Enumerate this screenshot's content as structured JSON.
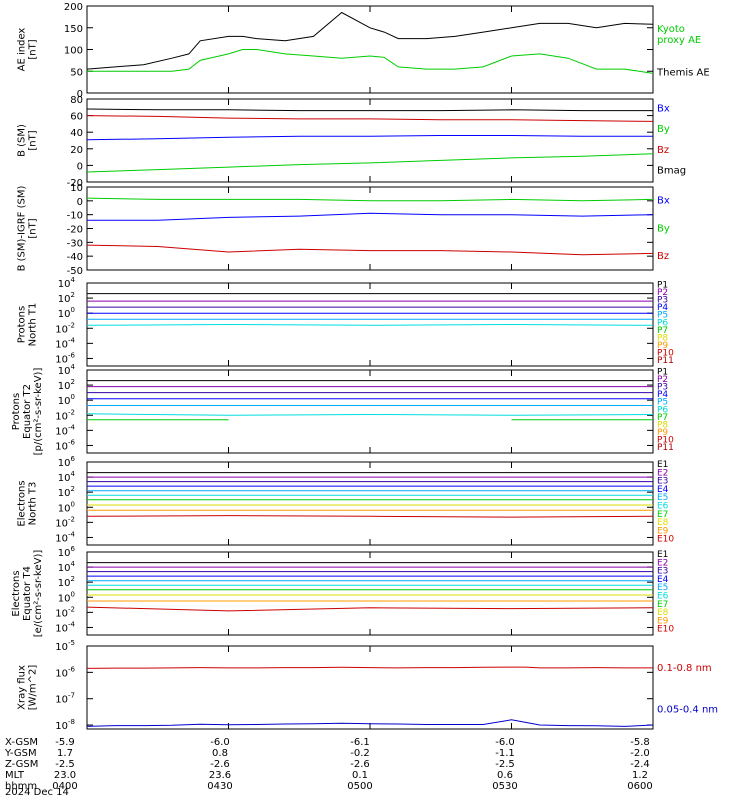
{
  "footer": {
    "rows": [
      {
        "label": "X-GSM",
        "values": [
          "-5.9",
          "-6.0",
          "-6.1",
          "-6.0",
          "-5.8"
        ]
      },
      {
        "label": "Y-GSM",
        "values": [
          "1.7",
          "0.8",
          "-0.2",
          "-1.1",
          "-2.0"
        ]
      },
      {
        "label": "Z-GSM",
        "values": [
          "-2.5",
          "-2.6",
          "-2.6",
          "-2.5",
          "-2.4"
        ]
      },
      {
        "label": "MLT",
        "values": [
          "23.0",
          "23.6",
          "0.1",
          "0.6",
          "1.2"
        ]
      },
      {
        "label": "hhmm",
        "values": [
          "0400",
          "0430",
          "0500",
          "0530",
          "0600"
        ]
      }
    ],
    "date": "2024 Dec 14"
  },
  "chart_data": [
    {
      "type": "line",
      "ylabel": "AE index\n[nT]",
      "scale": "linear",
      "ylim": [
        0,
        200
      ],
      "ticks": [
        {
          "v": 0,
          "l": "0"
        },
        {
          "v": 50,
          "l": "50"
        },
        {
          "v": 100,
          "l": "100"
        },
        {
          "v": 150,
          "l": "150"
        },
        {
          "v": 200,
          "l": "200"
        }
      ],
      "x": [
        0,
        0.1,
        0.2,
        0.3,
        0.36,
        0.4,
        0.5,
        0.55,
        0.6,
        0.7,
        0.8,
        0.9,
        1.0,
        1.05,
        1.1,
        1.2,
        1.3,
        1.4,
        1.5,
        1.6,
        1.7,
        1.8,
        1.9,
        2.0
      ],
      "series": [
        {
          "name": "Kyoto\nproxy AE",
          "color": "#00cc00",
          "values": [
            50,
            50,
            50,
            50,
            55,
            75,
            90,
            100,
            100,
            90,
            85,
            80,
            85,
            82,
            60,
            55,
            55,
            60,
            85,
            90,
            80,
            55,
            55,
            45
          ]
        },
        {
          "name": "Themis AE",
          "color": "#000000",
          "values": [
            55,
            60,
            65,
            80,
            90,
            120,
            130,
            130,
            125,
            120,
            130,
            185,
            150,
            140,
            125,
            125,
            130,
            140,
            150,
            160,
            160,
            150,
            160,
            158
          ]
        }
      ]
    },
    {
      "type": "line",
      "ylabel": "B (SM)\n[nT]",
      "scale": "linear",
      "ylim": [
        -20,
        80
      ],
      "ticks": [
        {
          "v": -20,
          "l": "-20"
        },
        {
          "v": 0,
          "l": "0"
        },
        {
          "v": 20,
          "l": "20"
        },
        {
          "v": 40,
          "l": "40"
        },
        {
          "v": 60,
          "l": "60"
        },
        {
          "v": 80,
          "l": "80"
        }
      ],
      "x": [
        0,
        0.25,
        0.5,
        0.75,
        1.0,
        1.25,
        1.5,
        1.75,
        2.0
      ],
      "series": [
        {
          "name": "Bx",
          "color": "#0000ff",
          "values": [
            31,
            32,
            34,
            35,
            35,
            36,
            36,
            35,
            35
          ]
        },
        {
          "name": "By",
          "color": "#00cc00",
          "values": [
            -8,
            -5,
            -2,
            1,
            3,
            6,
            9,
            11,
            14
          ]
        },
        {
          "name": "Bz",
          "color": "#cc0000",
          "values": [
            60,
            59,
            57,
            56,
            56,
            55,
            55,
            54,
            53
          ]
        },
        {
          "name": "Bmag",
          "color": "#000000",
          "values": [
            68,
            67,
            67,
            66,
            66,
            66,
            67,
            66,
            66
          ]
        }
      ]
    },
    {
      "type": "line",
      "ylabel": "B (SM)-IGRF (SM)\n[nT]",
      "scale": "linear",
      "ylim": [
        -50,
        10
      ],
      "ticks": [
        {
          "v": -50,
          "l": "-50"
        },
        {
          "v": -40,
          "l": "-40"
        },
        {
          "v": -30,
          "l": "-30"
        },
        {
          "v": -20,
          "l": "-20"
        },
        {
          "v": -10,
          "l": "-10"
        },
        {
          "v": 0,
          "l": "0"
        },
        {
          "v": 10,
          "l": "10"
        }
      ],
      "x": [
        0,
        0.25,
        0.5,
        0.75,
        1.0,
        1.25,
        1.5,
        1.75,
        2.0
      ],
      "series": [
        {
          "name": "Bx",
          "color": "#0000ff",
          "values": [
            -14,
            -14,
            -12,
            -11,
            -9,
            -10,
            -10,
            -11,
            -10
          ]
        },
        {
          "name": "By",
          "color": "#00cc00",
          "values": [
            2,
            1,
            1,
            1,
            0,
            0,
            1,
            0,
            1
          ]
        },
        {
          "name": "Bz",
          "color": "#cc0000",
          "values": [
            -32,
            -33,
            -37,
            -35,
            -36,
            -36,
            -37,
            -39,
            -38
          ]
        }
      ]
    },
    {
      "type": "line",
      "ylabel": "Protons\nNorth T1",
      "scale": "log",
      "ylim": [
        -7,
        4
      ],
      "ticks": [
        {
          "v": -6,
          "l": "10",
          "e": "-6"
        },
        {
          "v": -4,
          "l": "10",
          "e": "-4"
        },
        {
          "v": -2,
          "l": "10",
          "e": "-2"
        },
        {
          "v": 0,
          "l": "10",
          "e": "0"
        },
        {
          "v": 2,
          "l": "10",
          "e": "2"
        },
        {
          "v": 4,
          "l": "10",
          "e": "4"
        }
      ],
      "x": [
        0,
        0.5,
        1.0,
        1.5,
        2.0
      ],
      "series": [
        {
          "name": "P1",
          "color": "#000000",
          "values": [
            2.6,
            2.6,
            2.6,
            2.6,
            2.6
          ]
        },
        {
          "name": "P2",
          "color": "#8800aa",
          "values": [
            1.6,
            1.6,
            1.6,
            1.6,
            1.6
          ]
        },
        {
          "name": "P3",
          "color": "#3300aa",
          "values": [
            0.8,
            0.8,
            0.8,
            0.8,
            0.8
          ]
        },
        {
          "name": "P4",
          "color": "#0000ff",
          "values": [
            0,
            0,
            0,
            0,
            0
          ]
        },
        {
          "name": "P5",
          "color": "#00aaff",
          "values": [
            -0.8,
            -0.8,
            -0.8,
            -0.8,
            -0.8
          ]
        },
        {
          "name": "P6",
          "color": "#00dddd",
          "values": [
            -1.6,
            -1.5,
            -1.6,
            -1.5,
            -1.6
          ]
        },
        {
          "name": "P7",
          "color": "#00cc00",
          "values": [
            null,
            null,
            null,
            null,
            null
          ]
        },
        {
          "name": "P8",
          "color": "#dddd00",
          "values": [
            -3.0,
            null,
            -3.0,
            null,
            null
          ]
        },
        {
          "name": "P9",
          "color": "#ff9900",
          "values": [
            null,
            null,
            null,
            null,
            -3.3
          ]
        },
        {
          "name": "P10",
          "color": "#cc0000",
          "values": [
            null,
            null,
            null,
            null,
            null
          ]
        },
        {
          "name": "P11",
          "color": "#aa0000",
          "values": [
            null,
            null,
            null,
            null,
            null
          ]
        }
      ]
    },
    {
      "type": "line",
      "ylabel": "Protons\nEquator T2\n[p/(cm²-s-sr-keV)]",
      "scale": "log",
      "ylim": [
        -7,
        4
      ],
      "ticks": [
        {
          "v": -6,
          "l": "10",
          "e": "-6"
        },
        {
          "v": -4,
          "l": "10",
          "e": "-4"
        },
        {
          "v": -2,
          "l": "10",
          "e": "-2"
        },
        {
          "v": 0,
          "l": "10",
          "e": "0"
        },
        {
          "v": 2,
          "l": "10",
          "e": "2"
        },
        {
          "v": 4,
          "l": "10",
          "e": "4"
        }
      ],
      "x": [
        0,
        0.5,
        1.0,
        1.5,
        2.0
      ],
      "series": [
        {
          "name": "P1",
          "color": "#000000",
          "values": [
            2.6,
            2.6,
            2.6,
            2.6,
            2.6
          ]
        },
        {
          "name": "P2",
          "color": "#8800aa",
          "values": [
            1.8,
            1.8,
            1.8,
            1.8,
            1.8
          ]
        },
        {
          "name": "P3",
          "color": "#3300aa",
          "values": [
            1.0,
            1.0,
            1.0,
            1.0,
            1.0
          ]
        },
        {
          "name": "P4",
          "color": "#0000ff",
          "values": [
            0.2,
            0.2,
            0.2,
            0.2,
            0.2
          ]
        },
        {
          "name": "P5",
          "color": "#00aaff",
          "values": [
            -0.7,
            -0.7,
            -0.7,
            -0.7,
            -0.7
          ]
        },
        {
          "name": "P6",
          "color": "#00dddd",
          "values": [
            -1.8,
            -2.0,
            -1.9,
            -2.0,
            -1.9
          ]
        },
        {
          "name": "P7",
          "color": "#00cc00",
          "values": [
            -2.6,
            -2.6,
            null,
            -2.6,
            -2.6
          ]
        },
        {
          "name": "P8",
          "color": "#dddd00",
          "values": [
            null,
            null,
            null,
            null,
            null
          ]
        },
        {
          "name": "P9",
          "color": "#ff9900",
          "values": [
            null,
            null,
            null,
            null,
            null
          ]
        },
        {
          "name": "P10",
          "color": "#cc0000",
          "values": [
            null,
            null,
            null,
            null,
            null
          ]
        },
        {
          "name": "P11",
          "color": "#aa0000",
          "values": [
            null,
            null,
            null,
            null,
            null
          ]
        }
      ]
    },
    {
      "type": "line",
      "ylabel": "Electrons\nNorth T3",
      "scale": "log",
      "ylim": [
        -5,
        6
      ],
      "ticks": [
        {
          "v": -4,
          "l": "10",
          "e": "-4"
        },
        {
          "v": -2,
          "l": "10",
          "e": "-2"
        },
        {
          "v": 0,
          "l": "10",
          "e": "0"
        },
        {
          "v": 2,
          "l": "10",
          "e": "2"
        },
        {
          "v": 4,
          "l": "10",
          "e": "4"
        },
        {
          "v": 6,
          "l": "10",
          "e": "6"
        }
      ],
      "x": [
        0,
        0.5,
        1.0,
        1.5,
        2.0
      ],
      "series": [
        {
          "name": "E1",
          "color": "#000000",
          "values": [
            4.6,
            4.6,
            4.6,
            4.6,
            4.6
          ]
        },
        {
          "name": "E2",
          "color": "#8800aa",
          "values": [
            4.0,
            4.0,
            4.0,
            4.0,
            4.0
          ]
        },
        {
          "name": "E3",
          "color": "#3300aa",
          "values": [
            3.4,
            3.4,
            3.4,
            3.4,
            3.4
          ]
        },
        {
          "name": "E4",
          "color": "#0000ff",
          "values": [
            2.8,
            2.8,
            2.8,
            2.8,
            2.8
          ]
        },
        {
          "name": "E5",
          "color": "#00aaff",
          "values": [
            2.2,
            2.2,
            2.2,
            2.2,
            2.2
          ]
        },
        {
          "name": "E6",
          "color": "#00dddd",
          "values": [
            1.6,
            1.6,
            1.6,
            1.6,
            1.6
          ]
        },
        {
          "name": "E7",
          "color": "#00cc00",
          "values": [
            1.0,
            1.0,
            1.0,
            1.0,
            1.0
          ]
        },
        {
          "name": "E8",
          "color": "#dddd00",
          "values": [
            0.3,
            0.3,
            0.3,
            0.3,
            0.3
          ]
        },
        {
          "name": "E9",
          "color": "#ff9900",
          "values": [
            -0.4,
            -0.4,
            -0.4,
            -0.4,
            -0.4
          ]
        },
        {
          "name": "E10",
          "color": "#cc0000",
          "values": [
            -1.2,
            -1.1,
            -1.2,
            -1.3,
            -1.2
          ]
        }
      ]
    },
    {
      "type": "line",
      "ylabel": "Electrons\nEquator T4\n[e/(cm²-s-sr-keV)]",
      "scale": "log",
      "ylim": [
        -5,
        6
      ],
      "ticks": [
        {
          "v": -4,
          "l": "10",
          "e": "-4"
        },
        {
          "v": -2,
          "l": "10",
          "e": "-2"
        },
        {
          "v": 0,
          "l": "10",
          "e": "0"
        },
        {
          "v": 2,
          "l": "10",
          "e": "2"
        },
        {
          "v": 4,
          "l": "10",
          "e": "4"
        },
        {
          "v": 6,
          "l": "10",
          "e": "6"
        }
      ],
      "x": [
        0,
        0.5,
        1.0,
        1.5,
        2.0
      ],
      "series": [
        {
          "name": "E1",
          "color": "#000000",
          "values": [
            4.6,
            4.6,
            4.6,
            4.6,
            4.6
          ]
        },
        {
          "name": "E2",
          "color": "#8800aa",
          "values": [
            4.0,
            4.0,
            4.0,
            4.0,
            4.0
          ]
        },
        {
          "name": "E3",
          "color": "#3300aa",
          "values": [
            3.4,
            3.4,
            3.4,
            3.4,
            3.4
          ]
        },
        {
          "name": "E4",
          "color": "#0000ff",
          "values": [
            2.8,
            2.8,
            2.8,
            2.8,
            2.8
          ]
        },
        {
          "name": "E5",
          "color": "#00aaff",
          "values": [
            2.2,
            2.2,
            2.2,
            2.2,
            2.2
          ]
        },
        {
          "name": "E6",
          "color": "#00dddd",
          "values": [
            1.6,
            1.6,
            1.6,
            1.6,
            1.6
          ]
        },
        {
          "name": "E7",
          "color": "#00cc00",
          "values": [
            1.0,
            1.0,
            1.0,
            1.0,
            1.0
          ]
        },
        {
          "name": "E8",
          "color": "#dddd00",
          "values": [
            0.3,
            0.3,
            0.3,
            0.3,
            0.3
          ]
        },
        {
          "name": "E9",
          "color": "#ff9900",
          "values": [
            -0.5,
            -0.5,
            -0.5,
            -0.5,
            -0.5
          ]
        },
        {
          "name": "E10",
          "color": "#cc0000",
          "values": [
            -1.3,
            -1.8,
            -1.4,
            -1.5,
            -1.4
          ]
        }
      ]
    },
    {
      "type": "line",
      "ylabel": "Xray flux\n[W/m^2]",
      "scale": "log",
      "ylim": [
        -8.15,
        -5
      ],
      "ticks": [
        {
          "v": -8,
          "l": "10",
          "e": "-8"
        },
        {
          "v": -7,
          "l": "10",
          "e": "-7"
        },
        {
          "v": -6,
          "l": "10",
          "e": "-6"
        },
        {
          "v": -5,
          "l": "10",
          "e": "-5"
        }
      ],
      "x": [
        0,
        0.1,
        0.2,
        0.3,
        0.4,
        0.5,
        0.6,
        0.7,
        0.8,
        0.9,
        1.0,
        1.1,
        1.2,
        1.3,
        1.4,
        1.5,
        1.55,
        1.6,
        1.7,
        1.8,
        1.9,
        2.0
      ],
      "series": [
        {
          "name": "0.1-0.8 nm",
          "color": "#cc0000",
          "values": [
            -5.85,
            -5.84,
            -5.84,
            -5.83,
            -5.82,
            -5.83,
            -5.83,
            -5.82,
            -5.82,
            -5.81,
            -5.82,
            -5.83,
            -5.82,
            -5.82,
            -5.81,
            -5.8,
            -5.8,
            -5.83,
            -5.83,
            -5.82,
            -5.83,
            -5.83
          ]
        },
        {
          "name": "0.05-0.4 nm",
          "color": "#0000cc",
          "values": [
            -8.05,
            -8.02,
            -8.02,
            -8.01,
            -7.97,
            -7.99,
            -7.98,
            -7.96,
            -7.95,
            -7.93,
            -7.95,
            -7.96,
            -7.98,
            -7.98,
            -7.98,
            -7.8,
            -7.9,
            -8.0,
            -8.02,
            -8.03,
            -8.05,
            -8.0
          ]
        }
      ]
    }
  ]
}
